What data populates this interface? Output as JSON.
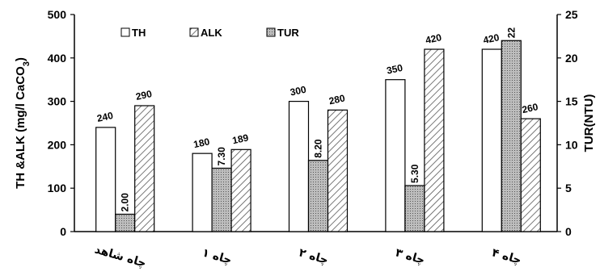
{
  "chart_data": {
    "type": "bar",
    "categories": [
      "چاه شاهد",
      "چاه ۱",
      "چاه ۲",
      "چاه ۳",
      "چاه ۴"
    ],
    "series": [
      {
        "name": "TH",
        "axis": "left",
        "values": [
          240,
          180,
          300,
          350,
          420
        ],
        "labels": [
          "240",
          "180",
          "300",
          "350",
          "420"
        ],
        "fill": "#ffffff"
      },
      {
        "name": "TUR",
        "axis": "right",
        "values": [
          2.0,
          7.3,
          8.2,
          5.3,
          22
        ],
        "labels": [
          "2.00",
          "7.30",
          "8.20",
          "5.30",
          "22"
        ],
        "fill": "#b8b8b8"
      },
      {
        "name": "ALK",
        "axis": "left",
        "values": [
          290,
          189,
          280,
          420,
          260
        ],
        "labels": [
          "290",
          "189",
          "280",
          "420",
          "260"
        ],
        "fill": "#ffffff"
      }
    ],
    "legend": [
      {
        "name": "TH",
        "pattern": "plain"
      },
      {
        "name": "ALK",
        "pattern": "hatch"
      },
      {
        "name": "TUR",
        "pattern": "dots"
      }
    ],
    "y_left": {
      "label": "TH &ALK (mg/l CaCO3)",
      "range": [
        0,
        500
      ],
      "ticks": [
        0,
        100,
        200,
        300,
        400,
        500
      ]
    },
    "y_right": {
      "label": "TUR(NTU)",
      "range": [
        0,
        25
      ],
      "ticks": [
        0,
        5,
        10,
        15,
        20,
        25
      ]
    },
    "legend_position": "top-left",
    "grid": false
  }
}
